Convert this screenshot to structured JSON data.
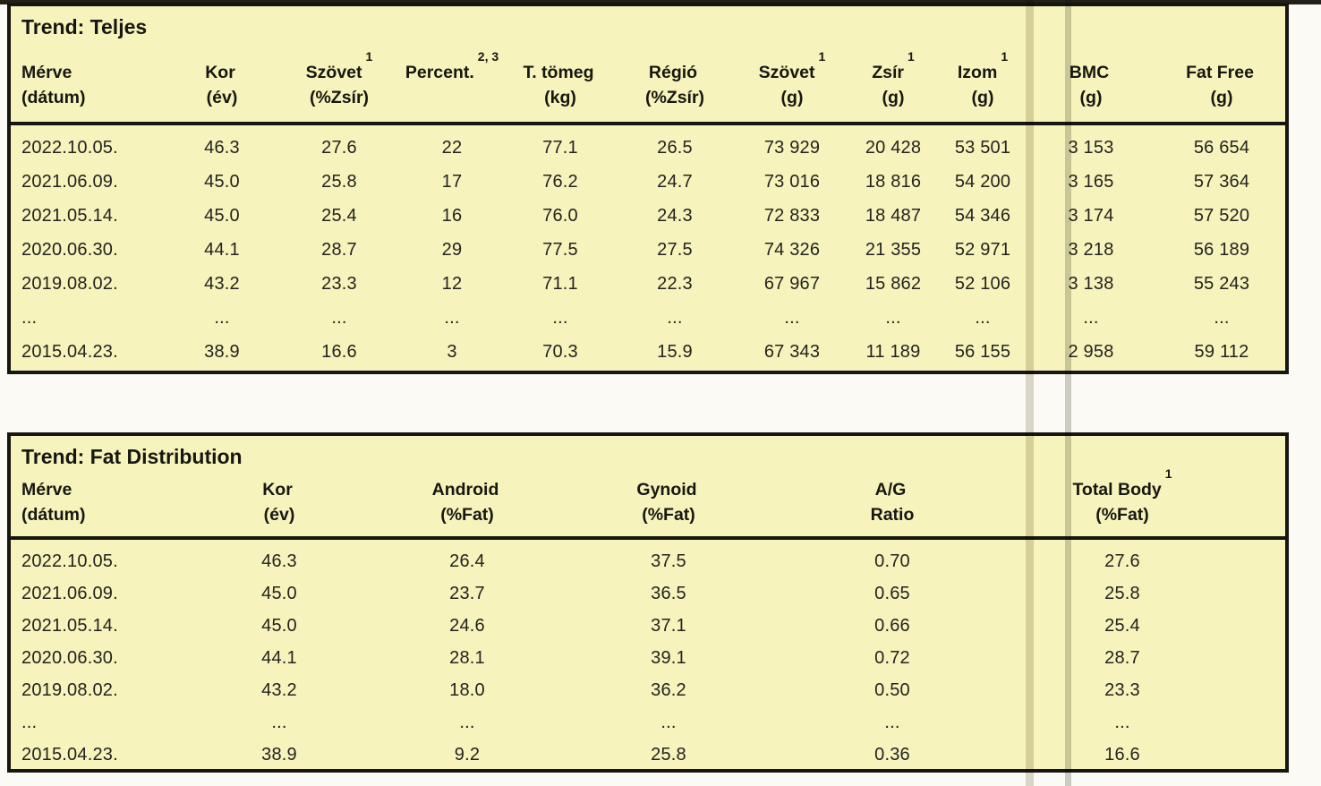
{
  "page": {
    "background_color": "#fbfaf5",
    "table_background_color": "#f7f3bc",
    "border_color": "#161510",
    "scan_line_color": "#bbb89d"
  },
  "table_teljes": {
    "title": "Trend: Teljes",
    "headers": [
      {
        "name": "Mérve",
        "sup": "",
        "unit": "(dátum)"
      },
      {
        "name": "Kor",
        "sup": "",
        "unit": "(év)"
      },
      {
        "name": "Szövet",
        "sup": "1",
        "unit": "(%Zsír)"
      },
      {
        "name": "Percent.",
        "sup": "2, 3",
        "unit": ""
      },
      {
        "name": "T. tömeg",
        "sup": "",
        "unit": "(kg)"
      },
      {
        "name": "Régió",
        "sup": "",
        "unit": "(%Zsír)"
      },
      {
        "name": "Szövet",
        "sup": "1",
        "unit": "(g)"
      },
      {
        "name": "Zsír",
        "sup": "1",
        "unit": "(g)"
      },
      {
        "name": "Izom",
        "sup": "1",
        "unit": "(g)"
      },
      {
        "name": "BMC",
        "sup": "",
        "unit": "(g)"
      },
      {
        "name": "Fat Free",
        "sup": "",
        "unit": "(g)"
      }
    ],
    "rows": [
      [
        "2022.10.05.",
        "46.3",
        "27.6",
        "22",
        "77.1",
        "26.5",
        "73 929",
        "20 428",
        "53 501",
        "3 153",
        "56 654"
      ],
      [
        "2021.06.09.",
        "45.0",
        "25.8",
        "17",
        "76.2",
        "24.7",
        "73 016",
        "18 816",
        "54 200",
        "3 165",
        "57 364"
      ],
      [
        "2021.05.14.",
        "45.0",
        "25.4",
        "16",
        "76.0",
        "24.3",
        "72 833",
        "18 487",
        "54 346",
        "3 174",
        "57 520"
      ],
      [
        "2020.06.30.",
        "44.1",
        "28.7",
        "29",
        "77.5",
        "27.5",
        "74 326",
        "21 355",
        "52 971",
        "3 218",
        "56 189"
      ],
      [
        "2019.08.02.",
        "43.2",
        "23.3",
        "12",
        "71.1",
        "22.3",
        "67 967",
        "15 862",
        "52 106",
        "3 138",
        "55 243"
      ],
      [
        "...",
        "...",
        "...",
        "...",
        "...",
        "...",
        "...",
        "...",
        "...",
        "...",
        "..."
      ],
      [
        "2015.04.23.",
        "38.9",
        "16.6",
        "3",
        "70.3",
        "15.9",
        "67 343",
        "11 189",
        "56 155",
        "2 958",
        "59 112"
      ]
    ]
  },
  "table_fat": {
    "title": "Trend: Fat Distribution",
    "headers": [
      {
        "name": "Mérve",
        "sup": "",
        "unit": "(dátum)"
      },
      {
        "name": "Kor",
        "sup": "",
        "unit": "(év)"
      },
      {
        "name": "Android",
        "sup": "",
        "unit": "(%Fat)"
      },
      {
        "name": "Gynoid",
        "sup": "",
        "unit": "(%Fat)"
      },
      {
        "name": "A/G",
        "sup": "",
        "unit": "Ratio"
      },
      {
        "name": "Total Body",
        "sup": "1",
        "unit": "(%Fat)"
      }
    ],
    "rows": [
      [
        "2022.10.05.",
        "46.3",
        "26.4",
        "37.5",
        "0.70",
        "27.6"
      ],
      [
        "2021.06.09.",
        "45.0",
        "23.7",
        "36.5",
        "0.65",
        "25.8"
      ],
      [
        "2021.05.14.",
        "45.0",
        "24.6",
        "37.1",
        "0.66",
        "25.4"
      ],
      [
        "2020.06.30.",
        "44.1",
        "28.1",
        "39.1",
        "0.72",
        "28.7"
      ],
      [
        "2019.08.02.",
        "43.2",
        "18.0",
        "36.2",
        "0.50",
        "23.3"
      ],
      [
        "...",
        "...",
        "...",
        "...",
        "...",
        "..."
      ],
      [
        "2015.04.23.",
        "38.9",
        "9.2",
        "25.8",
        "0.36",
        "16.6"
      ]
    ]
  }
}
